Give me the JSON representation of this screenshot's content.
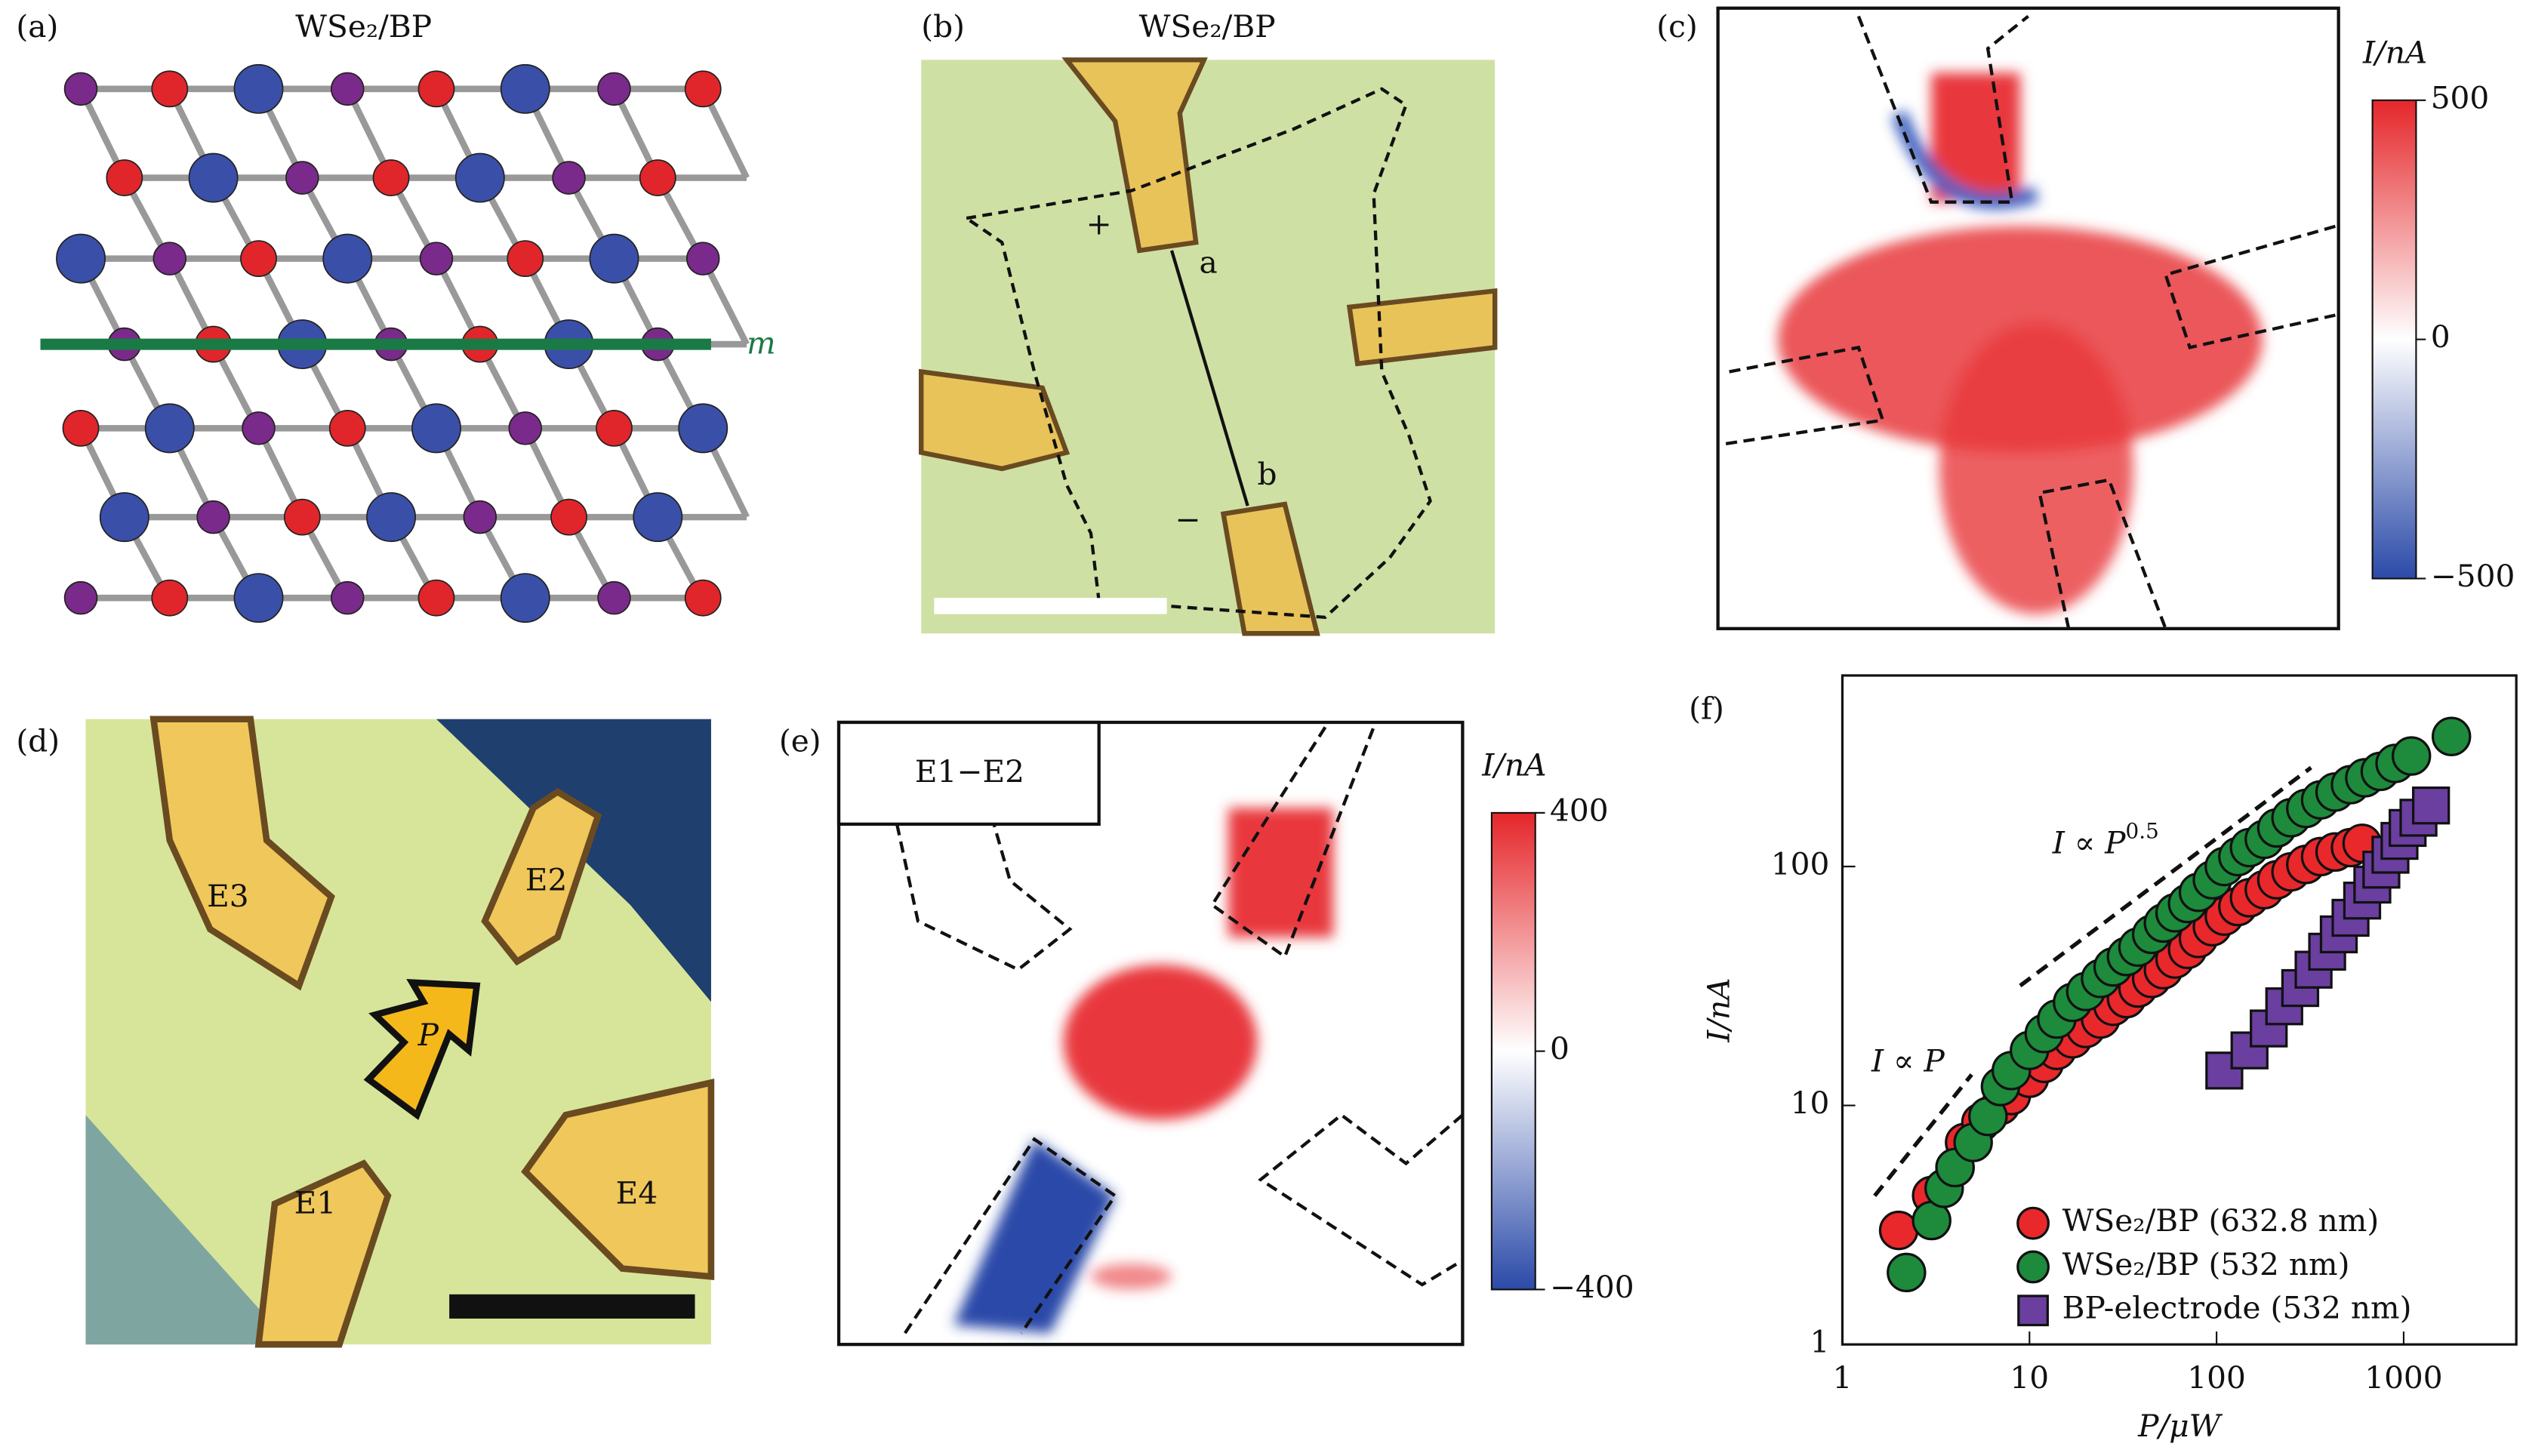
{
  "panels": {
    "a": {
      "label": "(a)",
      "title": "WSe₂/BP",
      "mirror": "m"
    },
    "b": {
      "label": "(b)",
      "title": "WSe₂/BP",
      "plus": "+",
      "minus": "−",
      "point_a": "a",
      "point_b": "b"
    },
    "c": {
      "label": "(c)",
      "colorbar": {
        "title": "I/nA",
        "limits": [
          -500,
          500
        ],
        "ticks": [
          500,
          0,
          {
            "value": -500,
            "label": "−500"
          }
        ]
      }
    },
    "d": {
      "label": "(d)",
      "electrodes": [
        "E1",
        "E2",
        "E3",
        "E4"
      ],
      "arrow": "P"
    },
    "e": {
      "label": "(e)",
      "inset": "E1−E2",
      "colorbar": {
        "title": "I/nA",
        "limits": [
          -400,
          400
        ],
        "ticks": [
          400,
          0,
          {
            "value": -400,
            "label": "−400"
          }
        ]
      }
    },
    "f": {
      "label": "(f)"
    }
  },
  "chart_data": {
    "type": "scatter",
    "xlabel": "P/μW",
    "ylabel": "I/nA",
    "xlog": true,
    "ylog": true,
    "xlim": [
      1,
      4000
    ],
    "ylim": [
      1,
      630
    ],
    "xticks": [
      1,
      10,
      100,
      1000
    ],
    "yticks": [
      1,
      10,
      100
    ],
    "annotations": [
      {
        "text": "I ∝ P"
      },
      {
        "text": "I ∝ P",
        "exponent": "0.5"
      }
    ],
    "legend": "lower right",
    "series": [
      {
        "name": "WSe₂/BP (632.8 nm)",
        "color": "#e8282b",
        "marker": "circle",
        "x": [
          2,
          3,
          4,
          4.5,
          5.5,
          7,
          8,
          10,
          12,
          14,
          17,
          20,
          24,
          28,
          33,
          38,
          45,
          52,
          60,
          70,
          80,
          95,
          110,
          130,
          150,
          180,
          210,
          250,
          300,
          360,
          430,
          520,
          600
        ],
        "values": [
          3,
          4.2,
          5.5,
          7,
          8.5,
          10,
          11,
          13,
          15,
          17,
          19,
          21,
          23,
          26,
          28,
          31,
          34,
          37,
          41,
          45,
          50,
          56,
          62,
          68,
          74,
          80,
          88,
          95,
          102,
          110,
          115,
          120,
          125
        ]
      },
      {
        "name": "WSe₂/BP (532 nm)",
        "color": "#1e8a3c",
        "marker": "circle",
        "x": [
          2.2,
          3,
          3.5,
          4,
          5,
          6,
          7,
          8,
          10,
          12,
          14,
          17,
          20,
          24,
          28,
          33,
          38,
          45,
          52,
          60,
          70,
          80,
          95,
          110,
          130,
          150,
          180,
          210,
          250,
          300,
          360,
          430,
          520,
          620,
          750,
          900,
          1100,
          1800
        ],
        "values": [
          2,
          3.3,
          4.5,
          5.5,
          7,
          9,
          12,
          14,
          17,
          20,
          23,
          27,
          30,
          34,
          38,
          42,
          46,
          52,
          58,
          64,
          70,
          78,
          88,
          100,
          110,
          120,
          130,
          145,
          160,
          175,
          190,
          205,
          220,
          235,
          250,
          270,
          290,
          350
        ]
      },
      {
        "name": "BP-electrode (532 nm)",
        "color": "#6a3fa0",
        "marker": "square",
        "x": [
          110,
          150,
          190,
          230,
          280,
          330,
          390,
          450,
          520,
          600,
          680,
          760,
          850,
          950,
          1050,
          1200,
          1400
        ],
        "values": [
          14,
          17,
          21,
          26,
          31,
          37,
          44,
          52,
          61,
          72,
          84,
          97,
          112,
          128,
          145,
          160,
          180
        ]
      }
    ]
  }
}
